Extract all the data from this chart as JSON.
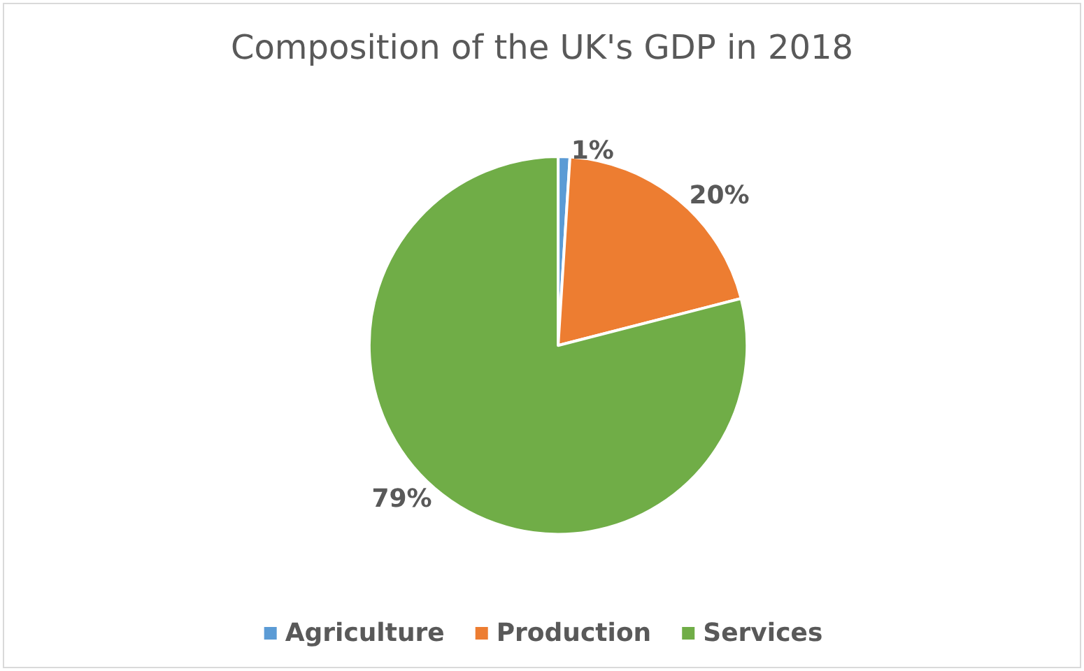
{
  "chart_data": {
    "type": "pie",
    "title": "Composition of the UK's GDP in 2018",
    "categories": [
      "Agriculture",
      "Production",
      "Services"
    ],
    "values": [
      1,
      20,
      79
    ],
    "value_labels": [
      "1%",
      "20%",
      "79%"
    ],
    "colors": [
      "#5b9bd5",
      "#ed7d31",
      "#70ad47"
    ],
    "legend": "bottom"
  }
}
